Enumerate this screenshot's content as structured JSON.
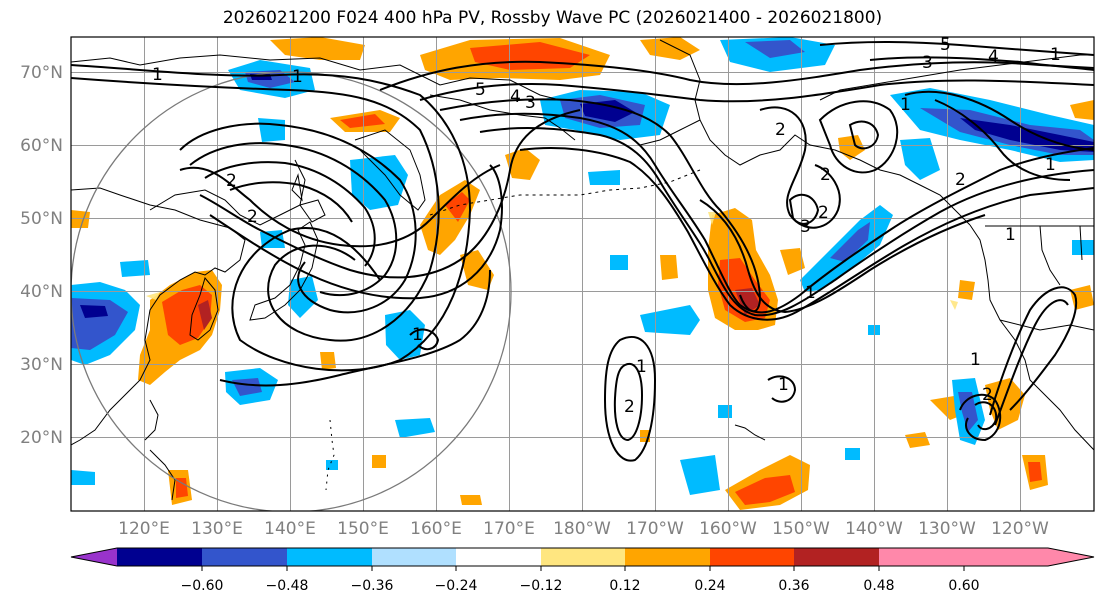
{
  "title": "2026021200 F024 400 hPa PV, Rossby Wave PC (2026021400 - 2026021800)",
  "lat_labels": [
    "70°N",
    "60°N",
    "50°N",
    "40°N",
    "30°N",
    "20°N"
  ],
  "lon_labels": [
    "120°E",
    "130°E",
    "140°E",
    "150°E",
    "160°E",
    "170°E",
    "180°W",
    "170°W",
    "160°W",
    "150°W",
    "140°W",
    "130°W",
    "120°W"
  ],
  "colorbar": {
    "ticks": [
      "−0.60",
      "−0.48",
      "−0.36",
      "−0.24",
      "−0.12",
      "0.12",
      "0.24",
      "0.36",
      "0.48",
      "0.60"
    ],
    "colors": [
      "#9933cc",
      "#000090",
      "#3355cc",
      "#00bbff",
      "#b0e0ff",
      "#ffffff",
      "#ffe680",
      "#ffa500",
      "#ff4500",
      "#b22222",
      "#ff88aa"
    ]
  },
  "contour_labels": [
    "1",
    "1",
    "2",
    "4",
    "5",
    "3",
    "5",
    "4",
    "3",
    "1",
    "2",
    "1",
    "1",
    "1",
    "2",
    "3",
    "2",
    "1",
    "2",
    "1",
    "1",
    "1",
    "2",
    "1",
    "2",
    "2"
  ],
  "colors": {
    "pos_yellow": "#ffe680",
    "pos_orange": "#ffa500",
    "pos_red": "#ff4500",
    "pos_dark": "#b22222",
    "neg_lightblue": "#b0e0ff",
    "neg_cyan": "#00bbff",
    "neg_blue": "#3355cc",
    "neg_navy": "#000090"
  }
}
